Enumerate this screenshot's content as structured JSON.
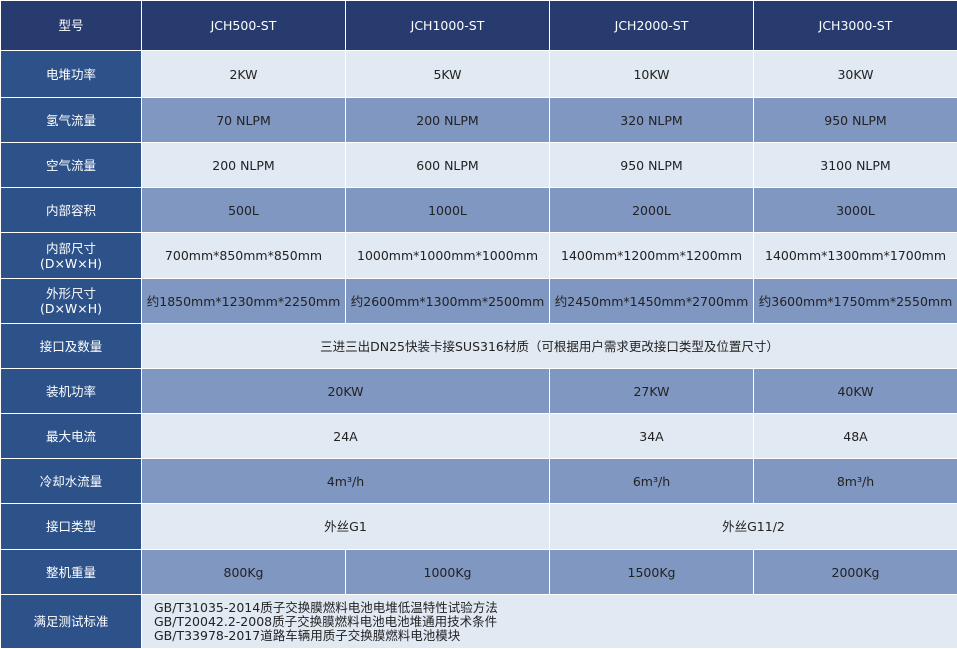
{
  "header": {
    "label": "型号",
    "models": [
      "JCH500-ST",
      "JCH1000-ST",
      "JCH2000-ST",
      "JCH3000-ST"
    ]
  },
  "rows": {
    "stack_power": {
      "label": "电堆功率",
      "values": [
        "2KW",
        "5KW",
        "10KW",
        "30KW"
      ]
    },
    "hydrogen_flow": {
      "label": "氢气流量",
      "values": [
        "70 NLPM",
        "200 NLPM",
        "320 NLPM",
        "950 NLPM"
      ]
    },
    "air_flow": {
      "label": "空气流量",
      "values": [
        "200 NLPM",
        "600 NLPM",
        "950 NLPM",
        "3100 NLPM"
      ]
    },
    "inner_volume": {
      "label": "内部容积",
      "values": [
        "500L",
        "1000L",
        "2000L",
        "3000L"
      ]
    },
    "inner_size": {
      "label": "内部尺寸",
      "sublabel": "(D×W×H)",
      "values": [
        "700mm*850mm*850mm",
        "1000mm*1000mm*1000mm",
        "1400mm*1200mm*1200mm",
        "1400mm*1300mm*1700mm"
      ]
    },
    "outer_size": {
      "label": "外形尺寸",
      "sublabel": "(D×W×H)",
      "values": [
        "约1850mm*1230mm*2250mm",
        "约2600mm*1300mm*2500mm",
        "约2450mm*1450mm*2700mm",
        "约3600mm*1750mm*2550mm"
      ]
    },
    "ports": {
      "label": "接口及数量",
      "value": "三进三出DN25快装卡接SUS316材质（可根据用户需求更改接口类型及位置尺寸）"
    },
    "install_power": {
      "label": "装机功率",
      "values": [
        "20KW",
        "27KW",
        "40KW"
      ]
    },
    "max_current": {
      "label": "最大电流",
      "values": [
        "24A",
        "34A",
        "48A"
      ]
    },
    "cooling_flow": {
      "label": "冷却水流量",
      "values": [
        "4m³/h",
        "6m³/h",
        "8m³/h"
      ]
    },
    "port_type": {
      "label": "接口类型",
      "values": [
        "外丝G1",
        "外丝G11/2"
      ]
    },
    "weight": {
      "label": "整机重量",
      "values": [
        "800Kg",
        "1000Kg",
        "1500Kg",
        "2000Kg"
      ]
    },
    "standards": {
      "label": "满足测试标准",
      "values": [
        "GB/T31035-2014质子交换膜燃料电池电堆低温特性试验方法",
        "GB/T20042.2-2008质子交换膜燃料电池电池堆通用技术条件",
        "GB/T33978-2017道路车辆用质子交换膜燃料电池模块"
      ]
    }
  },
  "colors": {
    "header": "#283b6e",
    "label_column": "#2d5189",
    "light_row": "#e1e9f3",
    "dark_row": "#8097c1"
  }
}
